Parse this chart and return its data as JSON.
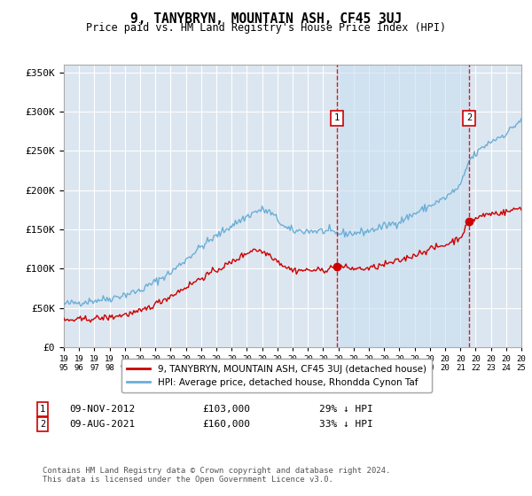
{
  "title": "9, TANYBRYN, MOUNTAIN ASH, CF45 3UJ",
  "subtitle": "Price paid vs. HM Land Registry's House Price Index (HPI)",
  "background_color": "#ffffff",
  "plot_bg_color": "#dce6f0",
  "grid_color": "#ffffff",
  "hpi_line_color": "#6baed6",
  "price_line_color": "#cc0000",
  "shade_color": "#cce0f0",
  "legend_line1": "9, TANYBRYN, MOUNTAIN ASH, CF45 3UJ (detached house)",
  "legend_line2": "HPI: Average price, detached house, Rhondda Cynon Taf",
  "footer": "Contains HM Land Registry data © Crown copyright and database right 2024.\nThis data is licensed under the Open Government Licence v3.0.",
  "ylim": [
    0,
    360000
  ],
  "yticks": [
    0,
    50000,
    100000,
    150000,
    200000,
    250000,
    300000,
    350000
  ],
  "ytick_labels": [
    "£0",
    "£50K",
    "£100K",
    "£150K",
    "£200K",
    "£250K",
    "£300K",
    "£350K"
  ],
  "marker1_idx": 215,
  "marker2_idx": 319,
  "marker1_price": 103000,
  "marker2_price": 160000
}
